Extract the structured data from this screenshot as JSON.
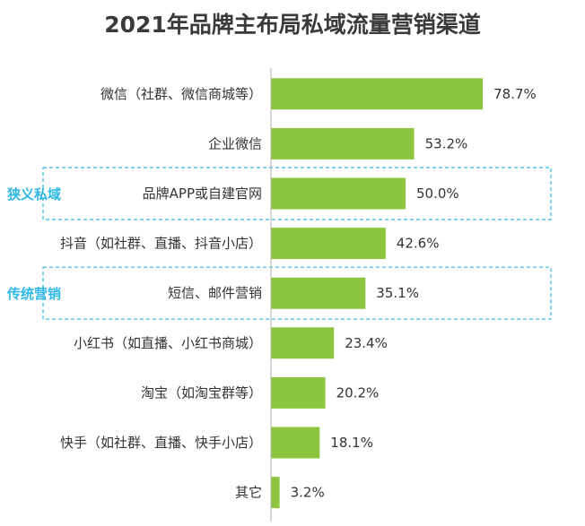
{
  "chart_data": {
    "type": "bar",
    "orientation": "horizontal",
    "title": "2021年品牌主布局私域流量营销渠道",
    "categories": [
      "微信（社群、微信商城等）",
      "企业微信",
      "品牌APP或自建官网",
      "抖音（如社群、直播、抖音小店）",
      "短信、邮件营销",
      "小红书（如直播、小红书商城）",
      "淘宝（如淘宝群等）",
      "快手（如社群、直播、快手小店）",
      "其它"
    ],
    "values": [
      78.7,
      53.2,
      50.0,
      42.6,
      35.1,
      23.4,
      20.2,
      18.1,
      3.2
    ],
    "value_labels": [
      "78.7%",
      "53.2%",
      "50.0%",
      "42.6%",
      "35.1%",
      "23.4%",
      "20.2%",
      "18.1%",
      "3.2%"
    ],
    "xlim": [
      0,
      100
    ],
    "unit": "%",
    "bar_color": "#8cc63f",
    "axis_color": "#b0b0b0",
    "annotations": [
      {
        "text": "狭义私域",
        "category_index": 2,
        "color": "#2eb8e8"
      },
      {
        "text": "传统营销",
        "category_index": 4,
        "color": "#2eb8e8"
      }
    ]
  }
}
